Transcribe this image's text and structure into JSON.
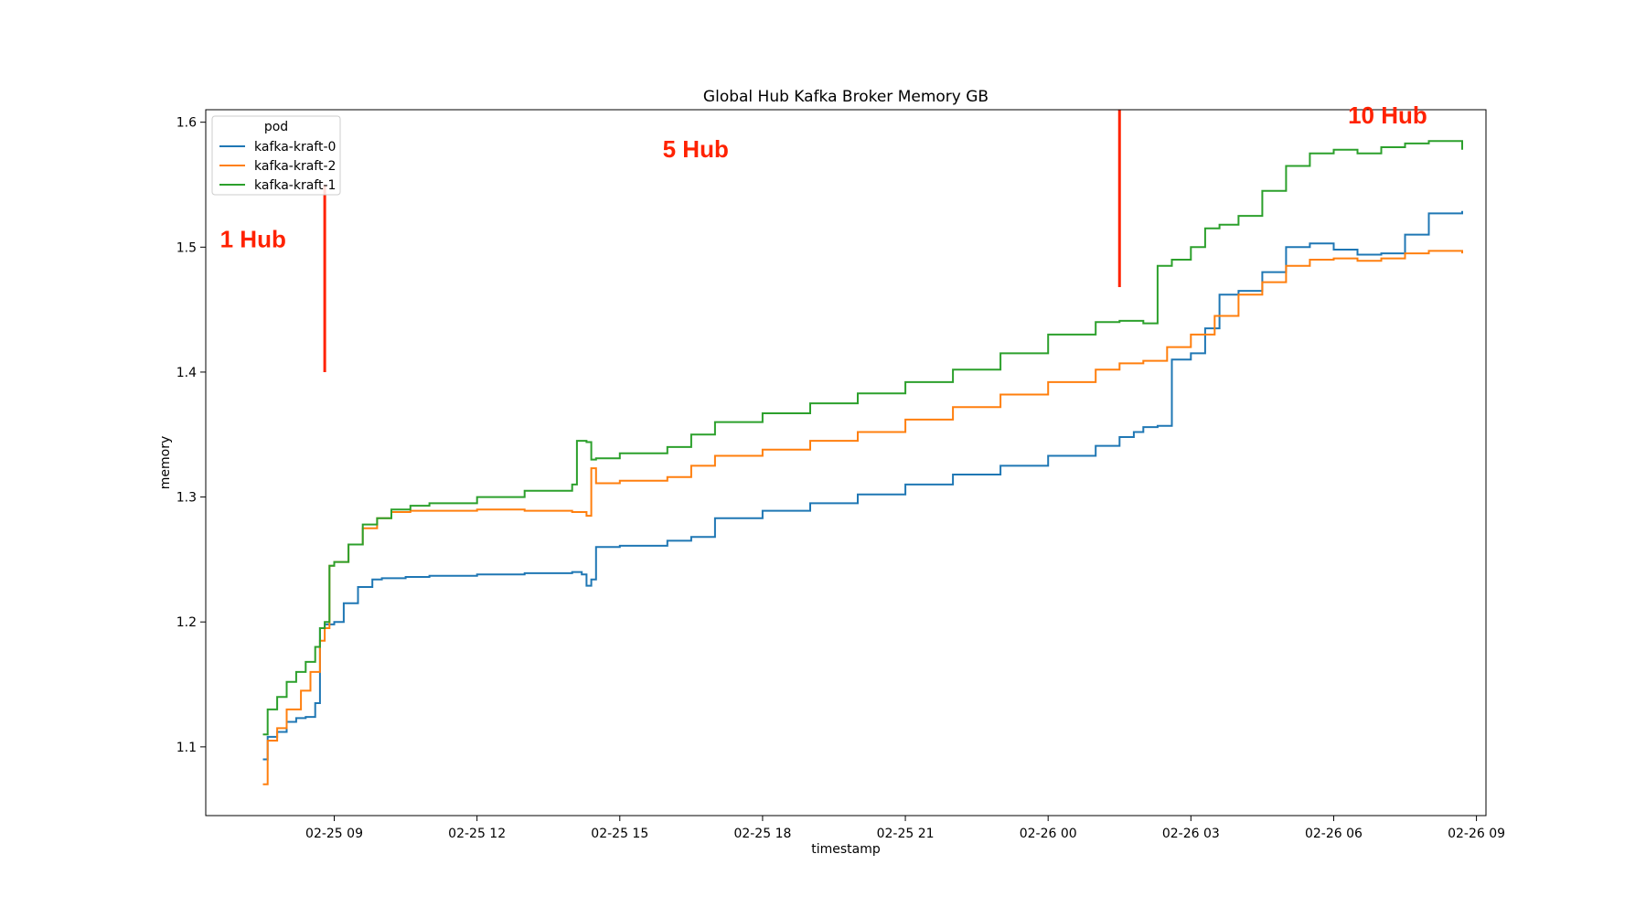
{
  "chart_data": {
    "type": "line",
    "title": "Global Hub Kafka Broker Memory GB",
    "xlabel": "timestamp",
    "ylabel": "memory",
    "x_ticks": [
      "02-25 09",
      "02-25 12",
      "02-25 15",
      "02-25 18",
      "02-25 21",
      "02-26 00",
      "02-26 03",
      "02-26 06",
      "02-26 09"
    ],
    "y_ticks": [
      "1.1",
      "1.2",
      "1.3",
      "1.4",
      "1.5",
      "1.6"
    ],
    "xlim_hours": [
      6.3,
      33.2
    ],
    "ylim": [
      1.045,
      1.61
    ],
    "grid": false,
    "legend": {
      "title": "pod",
      "placement": "top-left",
      "entries": [
        "kafka-kraft-0",
        "kafka-kraft-2",
        "kafka-kraft-1"
      ]
    },
    "series": [
      {
        "name": "kafka-kraft-0",
        "color": "#1f77b4",
        "x": [
          7.5,
          7.6,
          7.8,
          8.0,
          8.2,
          8.4,
          8.6,
          8.7,
          8.8,
          9.0,
          9.2,
          9.5,
          9.8,
          10.0,
          10.5,
          11.0,
          12.0,
          13.0,
          14.0,
          14.2,
          14.3,
          14.4,
          14.5,
          15.0,
          16.0,
          16.5,
          17.0,
          18.0,
          19.0,
          20.0,
          21.0,
          22.0,
          23.0,
          24.0,
          25.0,
          25.5,
          25.8,
          26.0,
          26.3,
          26.6,
          27.0,
          27.3,
          27.6,
          28.0,
          28.5,
          29.0,
          29.5,
          30.0,
          30.5,
          31.0,
          31.5,
          32.0,
          32.7
        ],
        "y": [
          1.09,
          1.108,
          1.112,
          1.12,
          1.123,
          1.124,
          1.135,
          1.195,
          1.198,
          1.2,
          1.215,
          1.228,
          1.234,
          1.235,
          1.236,
          1.237,
          1.238,
          1.239,
          1.24,
          1.238,
          1.229,
          1.234,
          1.26,
          1.261,
          1.265,
          1.268,
          1.283,
          1.289,
          1.295,
          1.302,
          1.31,
          1.318,
          1.325,
          1.333,
          1.341,
          1.348,
          1.352,
          1.356,
          1.357,
          1.41,
          1.415,
          1.435,
          1.462,
          1.465,
          1.48,
          1.5,
          1.503,
          1.498,
          1.494,
          1.495,
          1.51,
          1.527,
          1.529
        ]
      },
      {
        "name": "kafka-kraft-2",
        "color": "#ff7f0e",
        "x": [
          7.5,
          7.6,
          7.8,
          8.0,
          8.3,
          8.5,
          8.7,
          8.8,
          8.9,
          9.0,
          9.3,
          9.6,
          9.9,
          10.2,
          10.6,
          11.0,
          12.0,
          13.0,
          14.0,
          14.3,
          14.4,
          14.5,
          15.0,
          16.0,
          16.5,
          17.0,
          18.0,
          19.0,
          20.0,
          21.0,
          22.0,
          23.0,
          24.0,
          25.0,
          25.5,
          26.0,
          26.5,
          27.0,
          27.5,
          28.0,
          28.5,
          29.0,
          29.5,
          30.0,
          30.5,
          31.0,
          31.5,
          32.0,
          32.7
        ],
        "y": [
          1.07,
          1.105,
          1.115,
          1.13,
          1.145,
          1.16,
          1.185,
          1.195,
          1.245,
          1.248,
          1.262,
          1.275,
          1.283,
          1.288,
          1.289,
          1.289,
          1.29,
          1.289,
          1.288,
          1.285,
          1.323,
          1.311,
          1.313,
          1.316,
          1.325,
          1.333,
          1.338,
          1.345,
          1.352,
          1.362,
          1.372,
          1.382,
          1.392,
          1.402,
          1.407,
          1.409,
          1.42,
          1.43,
          1.445,
          1.462,
          1.472,
          1.485,
          1.49,
          1.491,
          1.489,
          1.491,
          1.495,
          1.497,
          1.495
        ]
      },
      {
        "name": "kafka-kraft-1",
        "color": "#2ca02c",
        "x": [
          7.5,
          7.6,
          7.8,
          8.0,
          8.2,
          8.4,
          8.6,
          8.7,
          8.8,
          8.9,
          9.0,
          9.3,
          9.6,
          9.9,
          10.2,
          10.6,
          11.0,
          12.0,
          13.0,
          14.0,
          14.1,
          14.3,
          14.4,
          14.5,
          15.0,
          16.0,
          16.5,
          17.0,
          18.0,
          19.0,
          20.0,
          21.0,
          22.0,
          23.0,
          24.0,
          25.0,
          25.5,
          26.0,
          26.3,
          26.6,
          27.0,
          27.3,
          27.6,
          28.0,
          28.5,
          29.0,
          29.5,
          30.0,
          30.5,
          31.0,
          31.5,
          32.0,
          32.7
        ],
        "y": [
          1.11,
          1.13,
          1.14,
          1.152,
          1.16,
          1.168,
          1.18,
          1.195,
          1.2,
          1.245,
          1.248,
          1.262,
          1.278,
          1.283,
          1.29,
          1.293,
          1.295,
          1.3,
          1.305,
          1.31,
          1.345,
          1.344,
          1.33,
          1.331,
          1.335,
          1.34,
          1.35,
          1.36,
          1.367,
          1.375,
          1.383,
          1.392,
          1.402,
          1.415,
          1.43,
          1.44,
          1.441,
          1.439,
          1.485,
          1.49,
          1.5,
          1.515,
          1.518,
          1.525,
          1.545,
          1.565,
          1.575,
          1.578,
          1.575,
          1.58,
          1.583,
          1.585,
          1.578
        ]
      }
    ],
    "markers": [
      {
        "x": 8.8,
        "y_from": 1.4,
        "y_to": 1.55,
        "color": "#ff2200"
      },
      {
        "x": 25.5,
        "y_from": 1.468,
        "y_to": 1.61,
        "color": "#ff2200"
      }
    ],
    "annotations": [
      {
        "text": "1 Hub",
        "x": 6.6,
        "y": 1.5,
        "color": "#ff2200"
      },
      {
        "text": "5 Hub",
        "x": 15.9,
        "y": 1.572,
        "color": "#ff2200"
      },
      {
        "text": "10 Hub",
        "x": 30.3,
        "y": 1.599,
        "color": "#ff2200"
      }
    ]
  }
}
